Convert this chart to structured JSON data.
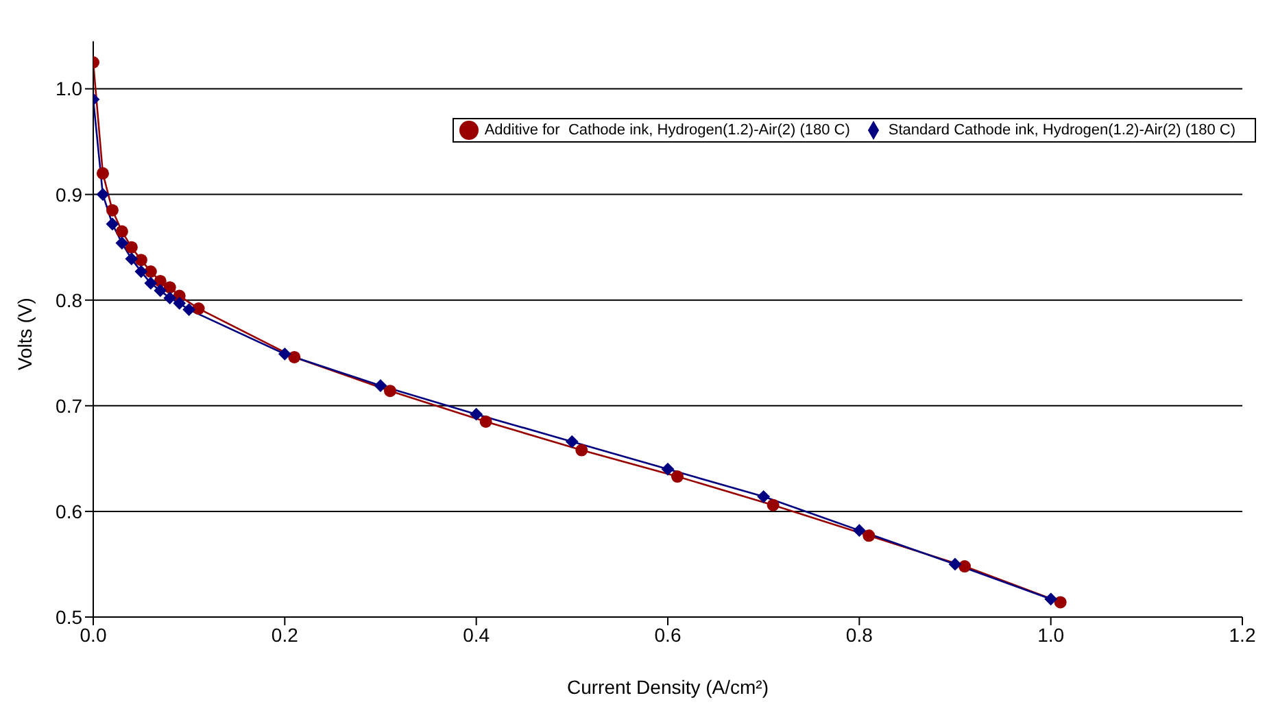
{
  "chart_data": {
    "type": "line",
    "xlabel": "Current Density (A/cm²)",
    "ylabel": "Volts (V)",
    "xlim": [
      0,
      1.2
    ],
    "xticks": [
      {
        "value": 0,
        "label": "0.0"
      },
      0.2,
      0.4,
      0.6,
      0.8,
      {
        "value": 1,
        "label": "1.0"
      },
      1.2
    ],
    "ylim": [
      0.5,
      1.045
    ],
    "yticks": [
      0.5,
      0.6,
      0.7,
      0.8,
      0.9,
      {
        "value": 1,
        "label": "1.0"
      }
    ],
    "grid": "y",
    "legend": "top right",
    "line_style": "solid",
    "series": [
      {
        "name": "Additive for  Cathode ink, Hydrogen(1.2)-Air(2) (180 C)",
        "color": "#990000",
        "marker": "circle",
        "x": [
          0,
          0.01,
          0.02,
          0.03,
          0.04,
          0.05,
          0.06,
          0.07,
          0.08,
          0.09,
          0.11,
          0.21,
          0.31,
          0.41,
          0.51,
          0.61,
          0.71,
          0.81,
          0.91,
          1.01
        ],
        "values": [
          1.025,
          0.92,
          0.885,
          0.865,
          0.85,
          0.838,
          0.827,
          0.818,
          0.812,
          0.804,
          0.792,
          0.746,
          0.714,
          0.685,
          0.658,
          0.633,
          0.606,
          0.577,
          0.548,
          0.514
        ]
      },
      {
        "name": "Standard Cathode ink, Hydrogen(1.2)-Air(2) (180 C)",
        "color": "#000080",
        "marker": "diamond",
        "x": [
          0,
          0.01,
          0.02,
          0.03,
          0.04,
          0.05,
          0.06,
          0.07,
          0.08,
          0.09,
          0.1,
          0.2,
          0.3,
          0.4,
          0.5,
          0.6,
          0.7,
          0.8,
          0.9,
          1.0
        ],
        "values": [
          0.99,
          0.9,
          0.872,
          0.854,
          0.839,
          0.827,
          0.816,
          0.809,
          0.802,
          0.797,
          0.791,
          0.749,
          0.719,
          0.692,
          0.666,
          0.64,
          0.614,
          0.582,
          0.55,
          0.517
        ]
      }
    ]
  }
}
